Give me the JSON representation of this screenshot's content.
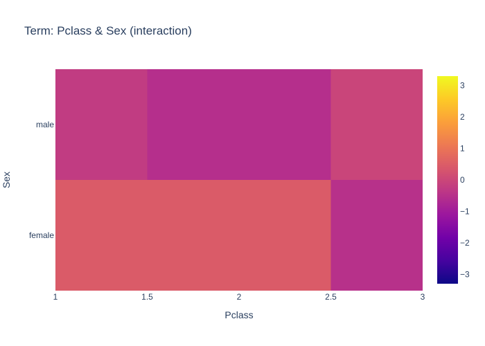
{
  "chart_data": {
    "type": "heatmap",
    "title": "Term: Pclass & Sex (interaction)",
    "xlabel": "Pclass",
    "ylabel": "Sex",
    "x_edges": [
      1,
      1.5,
      2.5,
      3
    ],
    "x_ticks": [
      1,
      1.5,
      2,
      2.5,
      3
    ],
    "x_tick_labels": [
      "1",
      "1.5",
      "2",
      "2.5",
      "3"
    ],
    "xlim": [
      1,
      3
    ],
    "y_categories": [
      "female",
      "male"
    ],
    "z": {
      "male": [
        -0.25,
        -0.55,
        -0.05
      ],
      "female": [
        0.45,
        0.45,
        -0.5
      ]
    },
    "colorscale": {
      "name": "Plasma",
      "zmin": -3.3,
      "zmax": 3.3,
      "ticks": [
        3,
        2,
        1,
        0,
        -1,
        -2,
        -3
      ],
      "tick_labels": [
        "3",
        "2",
        "1",
        "0",
        "−1",
        "−2",
        "−3"
      ]
    },
    "colors": {
      "plasma": [
        "#0d0887",
        "#46039f",
        "#7201a8",
        "#9c179e",
        "#bd3786",
        "#d8576b",
        "#ed7953",
        "#fb9f3a",
        "#fdca26",
        "#f0f921"
      ],
      "text": "#2a3f5f",
      "background": "#ffffff"
    }
  }
}
